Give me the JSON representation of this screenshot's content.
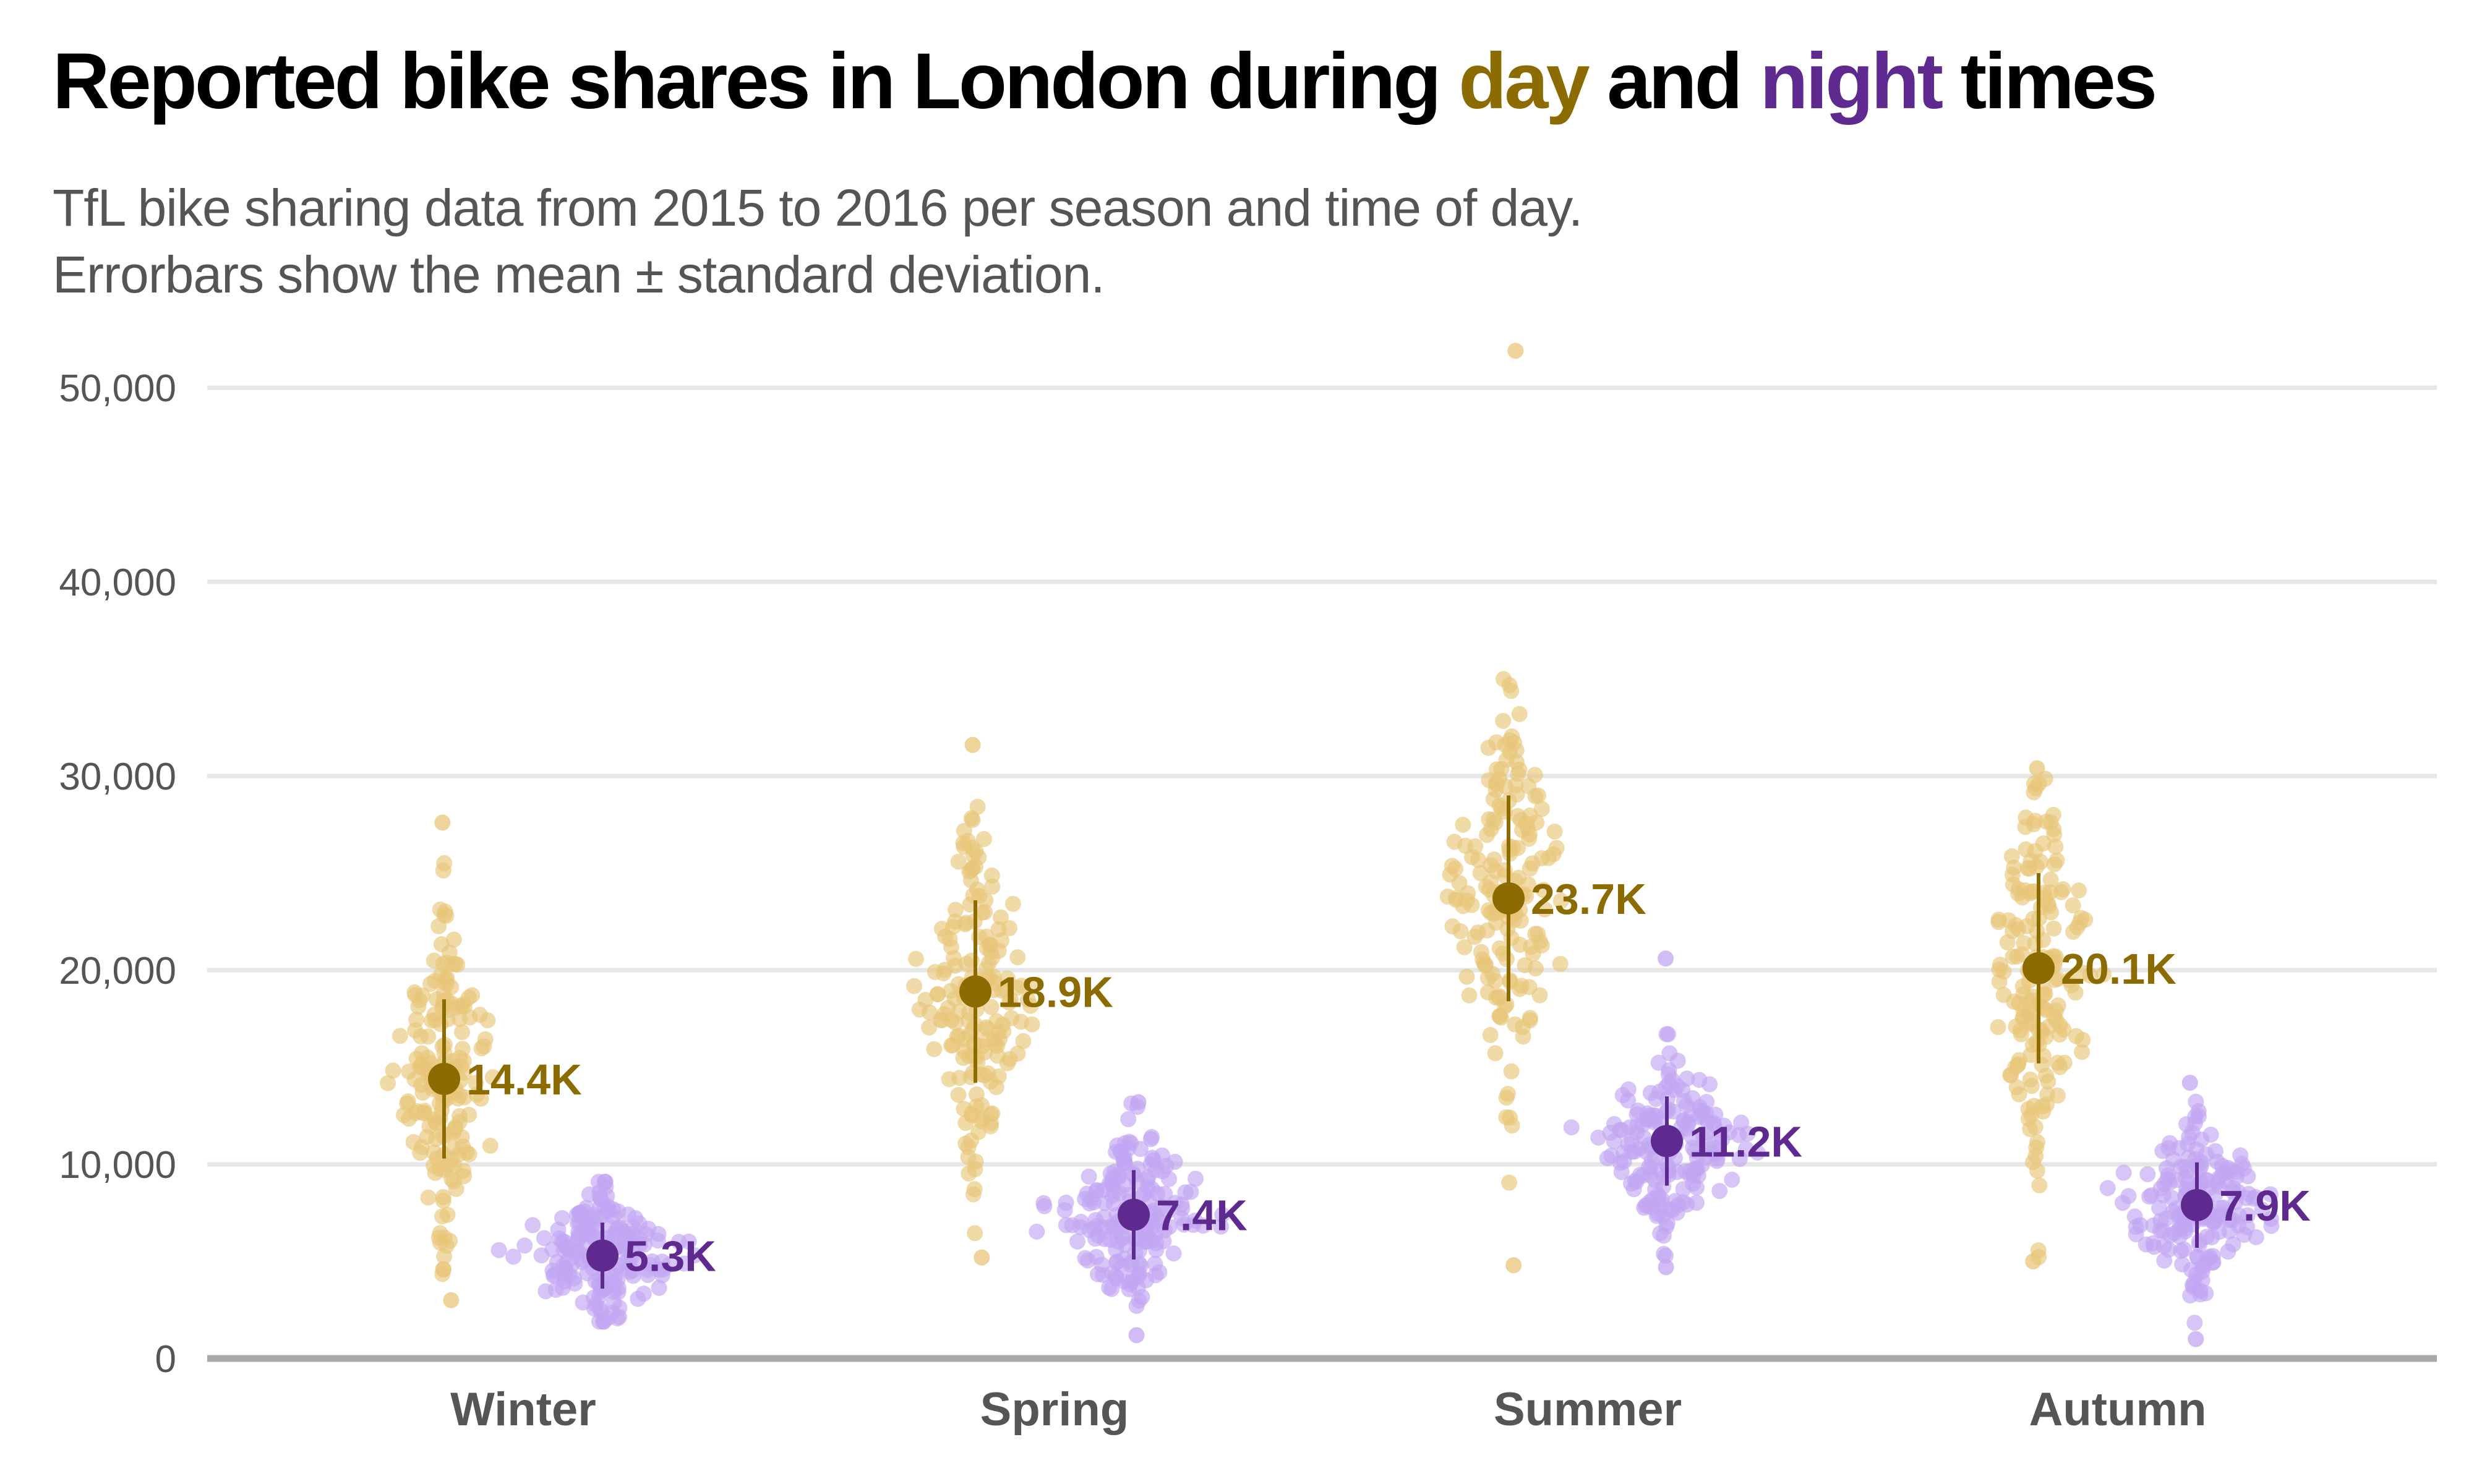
{
  "title_parts": {
    "before": "Reported bike shares in London during ",
    "day": "day",
    "and": " and ",
    "night": "night",
    "after": " times"
  },
  "subtitle_lines": [
    "TfL bike sharing data from 2015 to 2016 per season and time of day.",
    "Errorbars show the mean ± standard deviation."
  ],
  "colors": {
    "day": "#8C6C00",
    "day_points": "#E8C67A",
    "night": "#5E2A8F",
    "night_points": "#C2A6F2",
    "grid": "#E6E6E6",
    "baseline": "#A8A8A8"
  },
  "chart_data": {
    "type": "scatter",
    "subtype": "jittered strip plot with mean ± sd errorbars",
    "categories": [
      "Winter",
      "Spring",
      "Summer",
      "Autumn"
    ],
    "ylim": [
      0,
      52000
    ],
    "yticks": [
      0,
      10000,
      20000,
      30000,
      40000,
      50000
    ],
    "ytick_labels": [
      "0",
      "10,000",
      "20,000",
      "30,000",
      "40,000",
      "50,000"
    ],
    "grid": "horizontal",
    "legend": "none (encoded in title colors)",
    "series": [
      {
        "name": "day",
        "means": [
          14400,
          18900,
          23700,
          20100
        ],
        "sd": [
          4100,
          4700,
          5300,
          4900
        ],
        "labels": [
          "14.4K",
          "18.9K",
          "23.7K",
          "20.1K"
        ],
        "range_min": [
          3000,
          5200,
          4800,
          5000
        ],
        "range_max": [
          27600,
          31600,
          51900,
          30400
        ]
      },
      {
        "name": "night",
        "means": [
          5300,
          7400,
          11200,
          7900
        ],
        "sd": [
          1700,
          2300,
          2300,
          2200
        ],
        "labels": [
          "5.3K",
          "7.4K",
          "11.2K",
          "7.9K"
        ],
        "range_min": [
          1900,
          1200,
          4700,
          1000
        ],
        "range_max": [
          9100,
          13200,
          20600,
          14200
        ]
      }
    ]
  }
}
